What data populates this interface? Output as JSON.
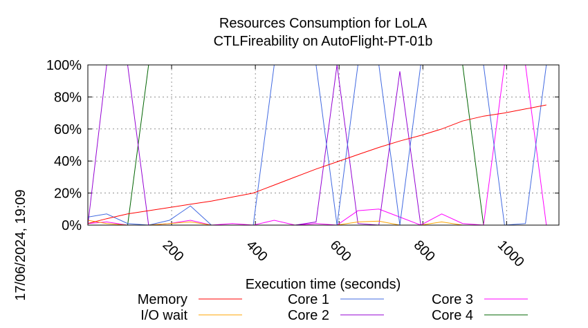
{
  "chart_data": {
    "type": "line",
    "title": "Resources Consumption for LoLA",
    "subtitle": "CTLFireability on AutoFlight-PT-01b",
    "xlabel": "Execution time (seconds)",
    "ylabel": "",
    "side_label": "17/06/2024, 19:09",
    "xlim": [
      0,
      1125
    ],
    "ylim": [
      0,
      100
    ],
    "xticks": [
      200,
      400,
      600,
      800,
      1000
    ],
    "xtick_labels": [
      "200",
      "400",
      "600",
      "800",
      "1000"
    ],
    "yticks": [
      0,
      20,
      40,
      60,
      80,
      100
    ],
    "ytick_labels": [
      "0%",
      "20%",
      "40%",
      "60%",
      "80%",
      "100%"
    ],
    "grid": true,
    "legend_position": "bottom",
    "series": [
      {
        "name": "Memory",
        "color": "#ff0000",
        "x": [
          0,
          45,
          95,
          145,
          195,
          245,
          295,
          345,
          395,
          445,
          495,
          545,
          595,
          645,
          695,
          745,
          795,
          845,
          895,
          945,
          995,
          1045,
          1095
        ],
        "y": [
          1,
          4,
          7,
          9,
          11,
          13,
          15,
          17.5,
          20,
          25,
          30,
          35,
          39.5,
          44,
          48.5,
          52.5,
          56,
          60,
          65,
          68,
          70,
          72.5,
          75
        ]
      },
      {
        "name": "I/O wait",
        "color": "#ffa500",
        "x": [
          0,
          45,
          95,
          145,
          195,
          245,
          295,
          345,
          395,
          445,
          495,
          545,
          595,
          645,
          695,
          745,
          795,
          845,
          895,
          945,
          995,
          1045,
          1095
        ],
        "y": [
          3,
          1,
          0,
          0,
          1,
          2,
          0,
          0,
          0,
          0,
          0,
          0,
          0,
          2,
          2.5,
          0,
          0,
          2,
          0,
          0,
          0,
          0,
          0
        ]
      },
      {
        "name": "Core 1",
        "color": "#4169e1",
        "x": [
          0,
          45,
          95,
          145,
          195,
          245,
          295,
          345,
          395,
          445,
          495,
          545,
          595,
          645,
          695,
          745,
          795,
          845,
          895,
          945,
          995,
          1045,
          1095
        ],
        "y": [
          5,
          7,
          1,
          0,
          3,
          12,
          0,
          0,
          0,
          100,
          100,
          100,
          0,
          100,
          100,
          0,
          100,
          100,
          100,
          100,
          0,
          1,
          100
        ]
      },
      {
        "name": "Core 2",
        "color": "#9400d3",
        "x": [
          0,
          45,
          95,
          145,
          195,
          245,
          295,
          345,
          395,
          445,
          495,
          545,
          595,
          645,
          695,
          745,
          795,
          845,
          895,
          945,
          995,
          1045,
          1095
        ],
        "y": [
          0,
          100,
          100,
          0,
          0,
          0,
          0,
          0,
          0,
          0,
          0,
          2,
          100,
          1,
          0,
          96,
          0,
          0,
          0,
          0,
          0,
          0,
          0
        ]
      },
      {
        "name": "Core 3",
        "color": "#ff00ff",
        "x": [
          0,
          45,
          95,
          145,
          195,
          245,
          295,
          345,
          395,
          445,
          495,
          545,
          595,
          645,
          695,
          745,
          795,
          845,
          895,
          945,
          995,
          1045,
          1095
        ],
        "y": [
          1,
          2,
          0,
          0,
          1,
          3,
          0,
          1,
          0,
          3,
          0,
          1,
          0,
          9,
          10,
          5,
          0,
          7,
          1,
          0,
          100,
          100,
          0
        ]
      },
      {
        "name": "Core 4",
        "color": "#006400",
        "x": [
          0,
          45,
          95,
          145,
          195,
          245,
          295,
          345,
          395,
          445,
          495,
          545,
          595,
          645,
          695,
          745,
          795,
          845,
          895,
          945,
          995,
          1045,
          1095
        ],
        "y": [
          0,
          0,
          0,
          100,
          100,
          100,
          100,
          100,
          100,
          100,
          100,
          100,
          100,
          100,
          100,
          100,
          100,
          100,
          100,
          0,
          0,
          0,
          0
        ]
      }
    ]
  }
}
